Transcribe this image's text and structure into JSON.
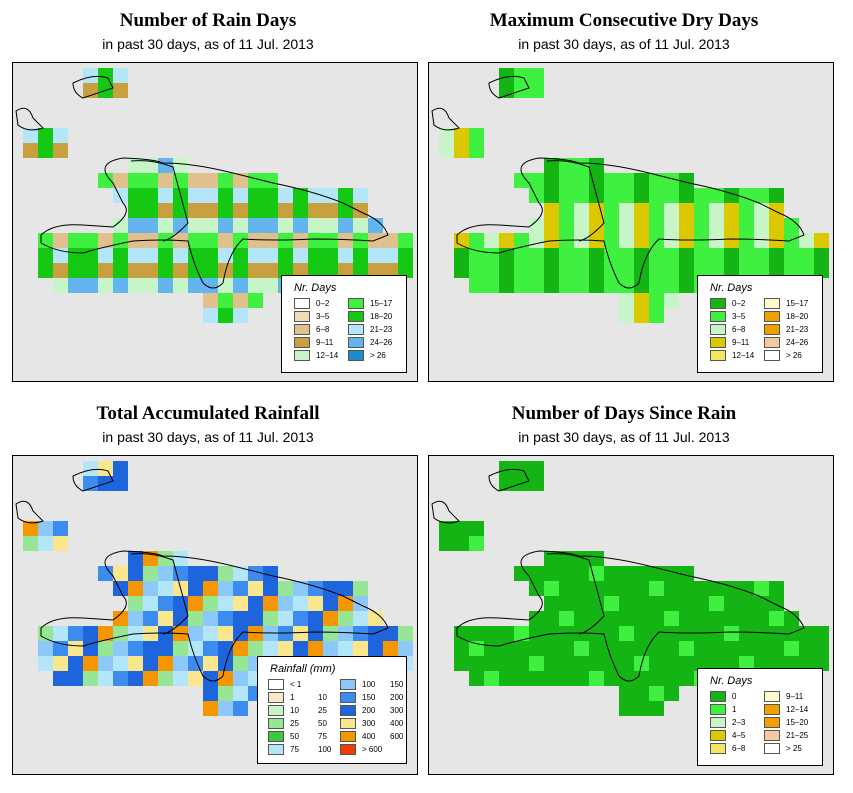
{
  "panels": [
    {
      "title": "Number of Rain Days",
      "subtitle": "in past 30 days, as of  11 Jul. 2013",
      "legend_title": "Nr. Days",
      "legend": [
        {
          "label": "0–2",
          "color": "#ffffff"
        },
        {
          "label": "3–5",
          "color": "#f0dcb4"
        },
        {
          "label": "6–8",
          "color": "#e0c08c"
        },
        {
          "label": "9–11",
          "color": "#c8a040"
        },
        {
          "label": "12–14",
          "color": "#c8f5c8"
        },
        {
          "label": "15–17",
          "color": "#40f040"
        },
        {
          "label": "18–20",
          "color": "#14c814"
        },
        {
          "label": "21–23",
          "color": "#b4e6fa"
        },
        {
          "label": "24–26",
          "color": "#64b4f0"
        },
        {
          "label": "> 26",
          "color": "#1e8ccc"
        }
      ]
    },
    {
      "title": "Maximum Consecutive Dry Days",
      "subtitle": "in past 30 days, as of  11 Jul. 2013",
      "legend_title": "Nr. Days",
      "legend": [
        {
          "label": "0–2",
          "color": "#14b414"
        },
        {
          "label": "3–5",
          "color": "#40f040"
        },
        {
          "label": "6–8",
          "color": "#c8f5c8"
        },
        {
          "label": "9–11",
          "color": "#dcc800"
        },
        {
          "label": "12–14",
          "color": "#f5e664"
        },
        {
          "label": "15–17",
          "color": "#fffac8"
        },
        {
          "label": "18–20",
          "color": "#f0a000"
        },
        {
          "label": "21–23",
          "color": "#f0a000"
        },
        {
          "label": "24–26",
          "color": "#f5c8a0"
        },
        {
          "label": "> 26",
          "color": "#ffffff"
        }
      ]
    },
    {
      "title": "Total Accumulated Rainfall",
      "subtitle": "in past 30 days, as of  11 Jul. 2013",
      "legend_title": "Rainfall (mm)",
      "legend": [
        {
          "label": "< 1",
          "label2": "",
          "color": "#ffffff"
        },
        {
          "label": "1",
          "label2": "10",
          "color": "#fae6c8"
        },
        {
          "label": "10",
          "label2": "25",
          "color": "#c8f5c8"
        },
        {
          "label": "25",
          "label2": "50",
          "color": "#96e696"
        },
        {
          "label": "50",
          "label2": "75",
          "color": "#3cc83c"
        },
        {
          "label": "75",
          "label2": "100",
          "color": "#b4e6fa"
        },
        {
          "label": "100",
          "label2": "150",
          "color": "#8cc8fa"
        },
        {
          "label": "150",
          "label2": "200",
          "color": "#3c8cf0"
        },
        {
          "label": "200",
          "label2": "300",
          "color": "#1e64dc"
        },
        {
          "label": "300",
          "label2": "400",
          "color": "#fae68c"
        },
        {
          "label": "400",
          "label2": "600",
          "color": "#f59600"
        },
        {
          "label": "> 600",
          "label2": "",
          "color": "#f03c00"
        }
      ]
    },
    {
      "title": "Number of Days Since Rain",
      "subtitle": "in past 30 days, as of  11 Jul. 2013",
      "legend_title": "Nr. Days",
      "legend": [
        {
          "label": "0",
          "color": "#14b414"
        },
        {
          "label": "1",
          "color": "#40f040"
        },
        {
          "label": "2–3",
          "color": "#c8f5c8"
        },
        {
          "label": "4–5",
          "color": "#dcc800"
        },
        {
          "label": "6–8",
          "color": "#f5e664"
        },
        {
          "label": "9–11",
          "color": "#fffac8"
        },
        {
          "label": "12–14",
          "color": "#f0a000"
        },
        {
          "label": "15–20",
          "color": "#f0a000"
        },
        {
          "label": "21–25",
          "color": "#f5c8a0"
        },
        {
          "label": "> 25",
          "color": "#ffffff"
        }
      ]
    }
  ],
  "colors": {
    "map_background": "#e6e6e6",
    "outline": "#000000"
  }
}
